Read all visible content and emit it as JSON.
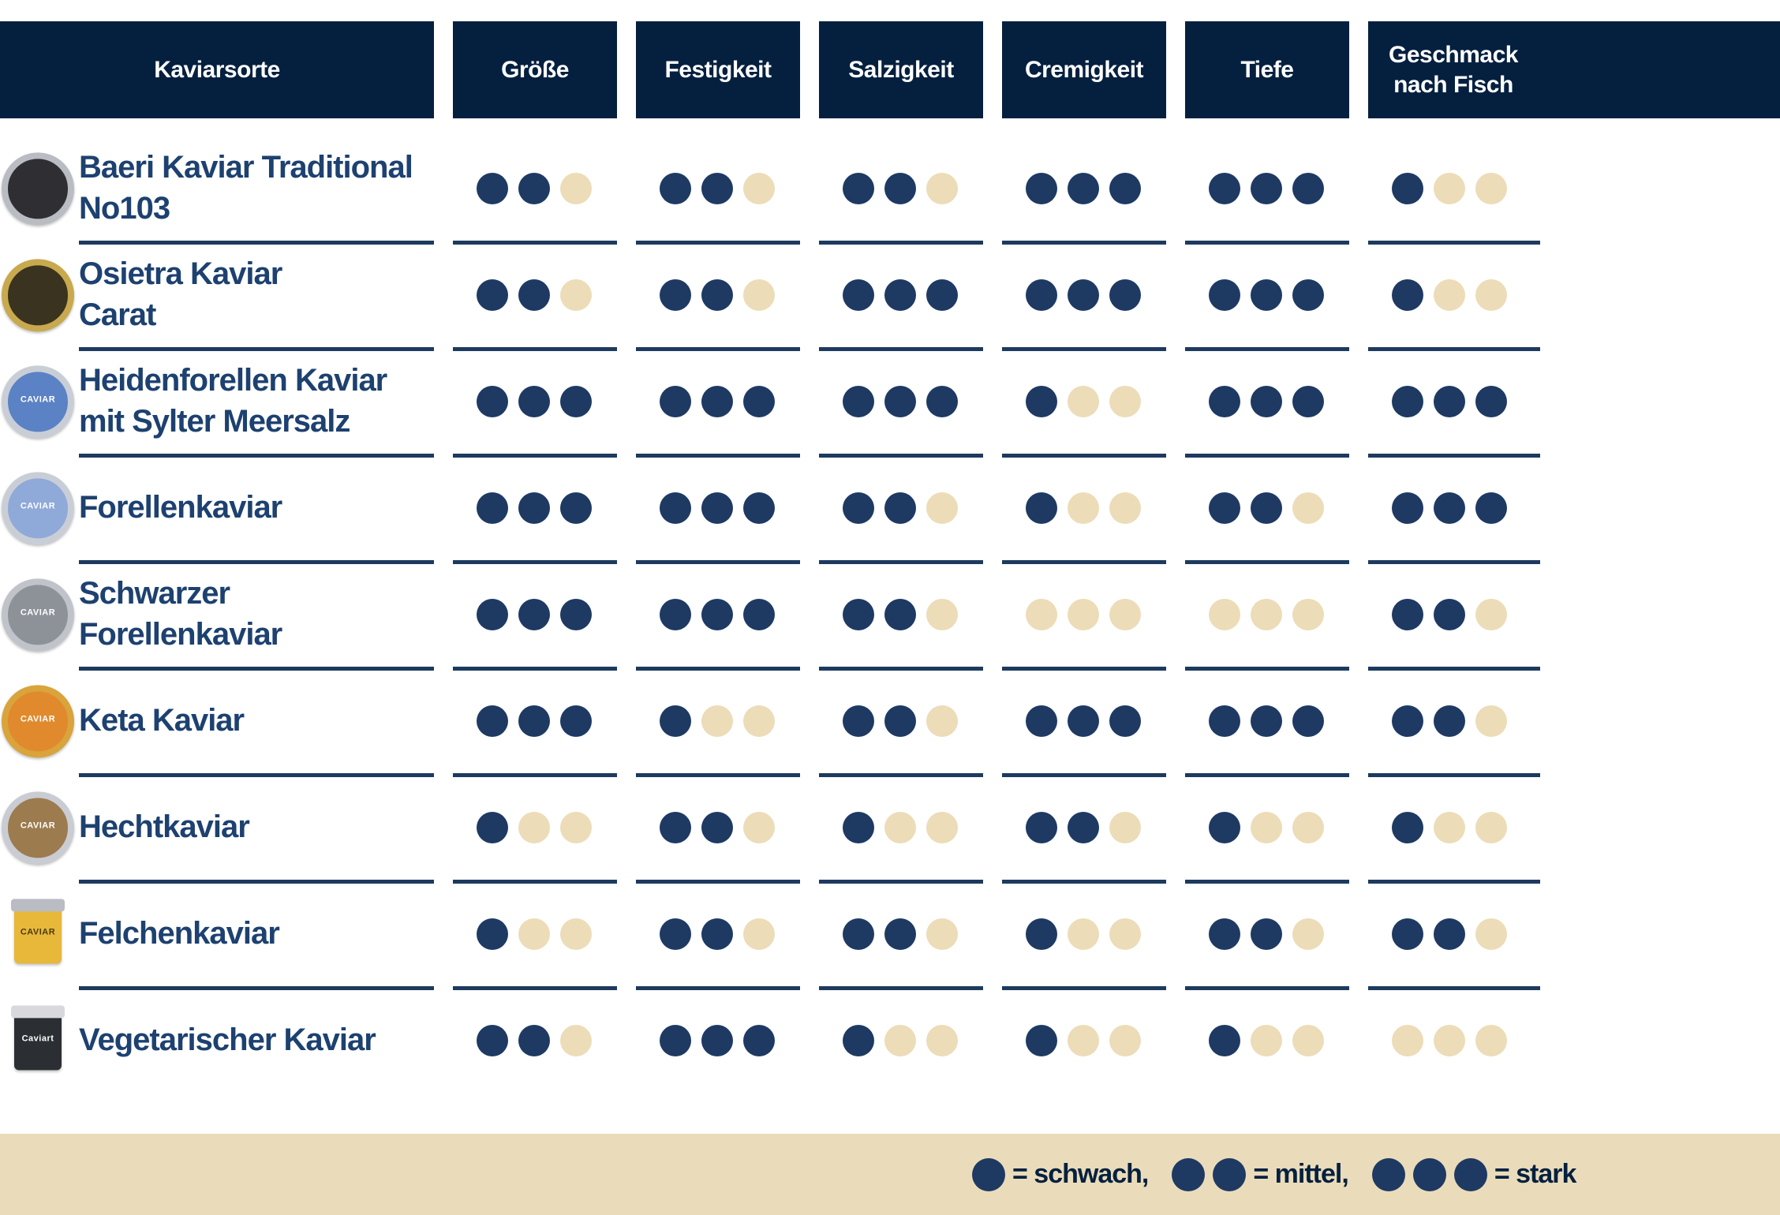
{
  "colors": {
    "header_navy": "#05203f",
    "dot_navy": "#1e3a63",
    "dot_beige": "#ecdcb8",
    "band_beige": "#eadcba",
    "text_navy": "#1d4170",
    "line_navy": "#1d3a5f"
  },
  "header": {
    "columns": [
      {
        "label": "Kaviarsorte"
      },
      {
        "label": "Größe"
      },
      {
        "label": "Festigkeit"
      },
      {
        "label": "Salzigkeit"
      },
      {
        "label": "Cremigkeit"
      },
      {
        "label": "Tiefe"
      },
      {
        "label": "Geschmack\nnach Fisch"
      }
    ]
  },
  "rows": [
    {
      "name": "Baeri Kaviar Traditional\nNo103",
      "icon": {
        "shape": "tin",
        "rim": "#b9bcc2",
        "body": "#2e2e33",
        "text": "",
        "text_color": "#ffffff"
      },
      "ratings": [
        2,
        2,
        2,
        3,
        3,
        1
      ]
    },
    {
      "name": "Osietra Kaviar\nCarat",
      "icon": {
        "shape": "tin",
        "rim": "#c8a94e",
        "body": "#3a3320",
        "text": "",
        "text_color": "#ffffff"
      },
      "ratings": [
        2,
        2,
        3,
        3,
        3,
        1
      ]
    },
    {
      "name": "Heidenforellen Kaviar\nmit Sylter Meersalz",
      "icon": {
        "shape": "tin",
        "rim": "#c9ced6",
        "body": "#5b82c4",
        "text": "CAVIAR",
        "text_color": "#ffffff"
      },
      "ratings": [
        3,
        3,
        3,
        1,
        3,
        3
      ]
    },
    {
      "name": "Forellenkaviar",
      "icon": {
        "shape": "tin",
        "rim": "#c9ced6",
        "body": "#8fa9d9",
        "text": "CAVIAR",
        "text_color": "#ffffff"
      },
      "ratings": [
        3,
        3,
        2,
        1,
        2,
        3
      ]
    },
    {
      "name": "Schwarzer\nForellenkaviar",
      "icon": {
        "shape": "tin",
        "rim": "#c0c3c9",
        "body": "#8d9299",
        "text": "CAVIAR",
        "text_color": "#ffffff"
      },
      "ratings": [
        3,
        3,
        2,
        0,
        0,
        2
      ]
    },
    {
      "name": "Keta Kaviar",
      "icon": {
        "shape": "tin",
        "rim": "#d9a43c",
        "body": "#e08a2d",
        "text": "CAVIAR",
        "text_color": "#ffffff"
      },
      "ratings": [
        3,
        1,
        2,
        3,
        3,
        2
      ]
    },
    {
      "name": "Hechtkaviar",
      "icon": {
        "shape": "tin",
        "rim": "#c9ccd2",
        "body": "#9c7b4e",
        "text": "CAVIAR",
        "text_color": "#ffffff"
      },
      "ratings": [
        1,
        2,
        1,
        2,
        1,
        1
      ]
    },
    {
      "name": "Felchenkaviar",
      "icon": {
        "shape": "jar",
        "lid": "#b9bcc2",
        "body": "#e8b83a",
        "text": "CAVIAR",
        "text_color": "#4a3a10"
      },
      "ratings": [
        1,
        2,
        2,
        1,
        2,
        2
      ]
    },
    {
      "name": "Vegetarischer Kaviar",
      "icon": {
        "shape": "jar",
        "lid": "#d7d9dd",
        "body": "#2b2f33",
        "text": "Caviart",
        "text_color": "#ffffff"
      },
      "ratings": [
        2,
        3,
        1,
        1,
        1,
        0
      ]
    }
  ],
  "legend": {
    "items": [
      {
        "dots": 1,
        "label": "= schwach,"
      },
      {
        "dots": 2,
        "label": "= mittel,"
      },
      {
        "dots": 3,
        "label": "= stark"
      }
    ]
  },
  "chart_data": {
    "type": "table",
    "title": "Kaviarsorten Vergleich",
    "categories": [
      "Größe",
      "Festigkeit",
      "Salzigkeit",
      "Cremigkeit",
      "Tiefe",
      "Geschmack nach Fisch"
    ],
    "scale": {
      "min": 0,
      "max": 3,
      "legend": {
        "1": "schwach",
        "2": "mittel",
        "3": "stark"
      }
    },
    "rows": [
      {
        "name": "Baeri Kaviar Traditional No103",
        "values": [
          2,
          2,
          2,
          3,
          3,
          1
        ]
      },
      {
        "name": "Osietra Kaviar Carat",
        "values": [
          2,
          2,
          3,
          3,
          3,
          1
        ]
      },
      {
        "name": "Heidenforellen Kaviar mit Sylter Meersalz",
        "values": [
          3,
          3,
          3,
          1,
          3,
          3
        ]
      },
      {
        "name": "Forellenkaviar",
        "values": [
          3,
          3,
          2,
          1,
          2,
          3
        ]
      },
      {
        "name": "Schwarzer Forellenkaviar",
        "values": [
          3,
          3,
          2,
          0,
          0,
          2
        ]
      },
      {
        "name": "Keta Kaviar",
        "values": [
          3,
          1,
          2,
          3,
          3,
          2
        ]
      },
      {
        "name": "Hechtkaviar",
        "values": [
          1,
          2,
          1,
          2,
          1,
          1
        ]
      },
      {
        "name": "Felchenkaviar",
        "values": [
          1,
          2,
          2,
          1,
          2,
          2
        ]
      },
      {
        "name": "Vegetarischer Kaviar",
        "values": [
          2,
          3,
          1,
          1,
          1,
          0
        ]
      }
    ]
  }
}
